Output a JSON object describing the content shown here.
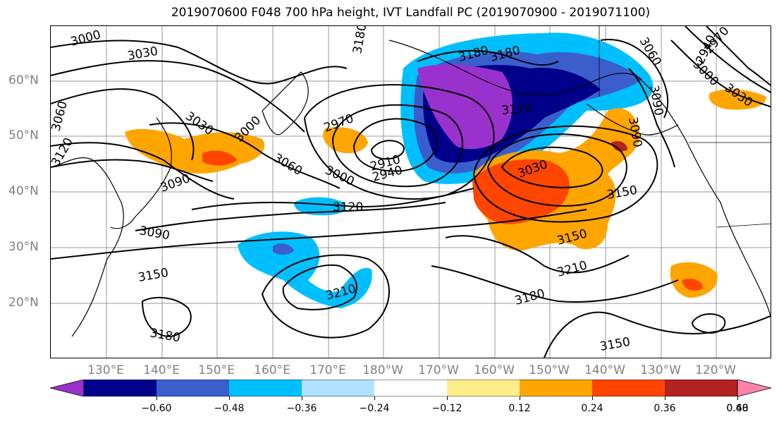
{
  "title": "2019070600 F048 700 hPa height, IVT Landfall PC (2019070900 - 2019071100)",
  "lat_labels": [
    "60°N",
    "50°N",
    "40°N",
    "30°N",
    "20°N"
  ],
  "lon_labels": [
    "130°E",
    "140°E",
    "150°E",
    "160°E",
    "170°E",
    "180°W",
    "170°W",
    "160°W",
    "150°W",
    "140°W",
    "130°W",
    "120°W"
  ],
  "contour_labels": [
    "3000",
    "3030",
    "3060",
    "3120",
    "3090",
    "3150",
    "3180",
    "2970",
    "2910",
    "2940",
    "3000",
    "3030",
    "3060",
    "3030",
    "3000",
    "3090",
    "3120",
    "3150",
    "3180",
    "3210",
    "3210",
    "3180",
    "3150",
    "2940",
    "2970",
    "3000",
    "3030",
    "3060",
    "3090",
    "3120",
    "3090",
    "3180",
    "3180",
    "3150"
  ],
  "colorbar": {
    "colors": [
      "#9932cc",
      "#00008b",
      "#3a5fcd",
      "#00bfff",
      "#b0e2ff",
      "#ffffff",
      "#ffec8b",
      "#ffa500",
      "#ff4500",
      "#b22222",
      "#ff82ab"
    ],
    "tick_labels": [
      "−0.60",
      "−0.48",
      "−0.36",
      "−0.24",
      "−0.12",
      "0.12",
      "0.24",
      "0.36",
      "0.48",
      "0.60"
    ]
  }
}
